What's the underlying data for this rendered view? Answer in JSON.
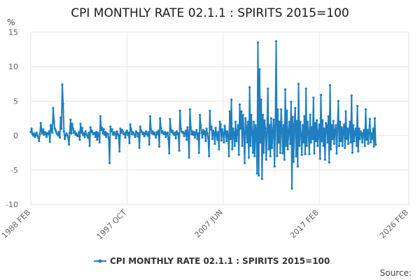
{
  "chart_data": {
    "type": "line",
    "title": "CPI MONTHLY RATE 02.1.1 : SPIRITS 2015=100",
    "ylabel": "%",
    "xlabel": "",
    "ylim": [
      -10,
      15
    ],
    "yticks": [
      -10,
      -5,
      0,
      5,
      10,
      15
    ],
    "xlim": [
      "1988 FEB",
      "2026 FEB"
    ],
    "xticks": [
      {
        "label": "1988 FEB",
        "month_index": 0
      },
      {
        "label": "1997 OCT",
        "month_index": 116
      },
      {
        "label": "2007 JUN",
        "month_index": 232
      },
      {
        "label": "2017 FEB",
        "month_index": 348
      },
      {
        "label": "2026 FEB",
        "month_index": 456
      }
    ],
    "series": [
      {
        "name": "CPI MONTHLY RATE 02.1.1 : SPIRITS 2015=100",
        "color": "#1f7fbf",
        "start": "1988 FEB",
        "frequency": "monthly",
        "values": [
          0.5,
          1.0,
          0.2,
          0.0,
          0.3,
          -0.2,
          0.1,
          0.4,
          0.0,
          -0.3,
          -0.8,
          0.2,
          1.8,
          0.6,
          0.3,
          0.9,
          0.1,
          0.5,
          0.4,
          -0.2,
          0.3,
          0.2,
          0.6,
          -0.9,
          1.5,
          0.9,
          0.4,
          4.0,
          2.1,
          1.0,
          0.7,
          0.4,
          0.2,
          0.0,
          0.5,
          -0.3,
          2.6,
          1.0,
          7.4,
          4.6,
          0.6,
          -0.5,
          0.0,
          0.3,
          0.1,
          -0.2,
          -1.3,
          0.4,
          2.3,
          0.3,
          1.7,
          1.0,
          0.4,
          0.6,
          0.1,
          0.3,
          0.0,
          -0.1,
          0.5,
          -0.6,
          1.7,
          0.4,
          1.1,
          0.1,
          0.3,
          -0.2,
          0.6,
          0.2,
          0.0,
          -0.3,
          0.4,
          -1.5,
          1.2,
          0.5,
          0.7,
          0.2,
          0.3,
          0.4,
          -0.2,
          0.5,
          -0.6,
          0.4,
          0.0,
          -1.0,
          2.8,
          0.8,
          1.1,
          0.3,
          0.9,
          0.1,
          0.5,
          -0.2,
          0.3,
          0.2,
          -0.4,
          -4.0,
          1.3,
          0.6,
          0.9,
          0.2,
          0.1,
          0.5,
          0.3,
          -0.4,
          0.6,
          0.2,
          0.0,
          -2.3,
          1.0,
          0.4,
          0.8,
          0.6,
          0.2,
          0.3,
          -0.3,
          0.5,
          0.7,
          0.1,
          0.4,
          -1.1,
          1.6,
          0.9,
          0.2,
          0.5,
          0.3,
          0.1,
          -0.2,
          0.6,
          0.4,
          -0.1,
          0.3,
          -1.8,
          1.3,
          0.7,
          0.5,
          0.2,
          0.4,
          -0.1,
          0.3,
          0.6,
          0.2,
          0.0,
          0.5,
          -1.3,
          2.8,
          0.9,
          0.3,
          0.6,
          0.2,
          0.4,
          0.1,
          -0.3,
          0.5,
          0.2,
          0.7,
          -1.6,
          2.5,
          1.1,
          0.4,
          0.6,
          0.3,
          0.2,
          0.5,
          -0.2,
          0.3,
          0.4,
          -0.5,
          -2.6,
          2.4,
          0.8,
          0.5,
          0.7,
          0.3,
          0.1,
          0.4,
          -0.4,
          0.6,
          0.2,
          0.3,
          -2.2,
          3.6,
          1.0,
          0.6,
          0.4,
          0.5,
          -0.1,
          0.3,
          0.7,
          -0.6,
          1.2,
          0.2,
          -3.2,
          3.8,
          1.2,
          0.2,
          0.6,
          0.1,
          0.5,
          -0.3,
          0.4,
          0.8,
          -0.5,
          0.3,
          -2.5,
          3.0,
          1.5,
          0.4,
          -0.3,
          0.8,
          0.2,
          0.6,
          -0.8,
          1.0,
          0.3,
          -0.4,
          -3.0,
          3.6,
          0.9,
          1.3,
          -0.5,
          0.7,
          0.4,
          -1.2,
          1.1,
          0.2,
          -0.6,
          0.5,
          -2.0,
          2.0,
          1.6,
          -0.7,
          0.9,
          0.3,
          -1.0,
          1.4,
          0.5,
          -0.8,
          0.6,
          0.2,
          -3.0,
          3.5,
          -0.5,
          5.2,
          -2.0,
          1.0,
          0.4,
          -1.5,
          2.0,
          -0.8,
          0.6,
          1.5,
          -2.8,
          4.5,
          1.0,
          3.5,
          -1.5,
          3.0,
          0.5,
          -4.0,
          2.5,
          1.2,
          -1.0,
          2.0,
          -3.2,
          7.0,
          -1.5,
          3.0,
          0.5,
          -2.5,
          2.0,
          -3.0,
          1.5,
          0.8,
          -5.5,
          13.5,
          -5.8,
          9.6,
          -1.0,
          5.2,
          -6.3,
          3.0,
          -2.5,
          2.2,
          1.0,
          -3.5,
          0.5,
          6.8,
          -2.0,
          1.5,
          -3.0,
          2.5,
          -1.8,
          0.6,
          2.3,
          -4.5,
          1.5,
          13.7,
          -3.0,
          3.8,
          -1.0,
          2.0,
          -2.5,
          3.8,
          1.0,
          -2.6,
          1.5,
          -3.5,
          6.7,
          -1.5,
          3.6,
          -2.0,
          0.5,
          2.0,
          -1.2,
          4.9,
          -7.7,
          2.7,
          -3.8,
          1.6,
          4.0,
          -3.0,
          2.1,
          -4.5,
          7.5,
          -1.5,
          2.0,
          0.2,
          -2.8,
          1.5,
          -1.0,
          2.8,
          -2.7,
          6.8,
          -1.5,
          2.0,
          0.5,
          -2.7,
          3.0,
          -1.0,
          1.2,
          -0.5,
          5.5,
          -2.6,
          1.8,
          -0.8,
          2.2,
          -1.5,
          0.6,
          1.6,
          -3.4,
          5.9,
          -0.8,
          2.2,
          -1.5,
          1.0,
          -3.5,
          1.8,
          1.5,
          -1.0,
          2.8,
          -3.9,
          7.3,
          -2.0,
          1.5,
          -0.5,
          2.1,
          -1.2,
          0.8,
          1.5,
          -2.6,
          1.0,
          5.0,
          -1.5,
          2.0,
          -0.8,
          1.2,
          -1.5,
          0.9,
          1.6,
          -1.8,
          3.5,
          -0.5,
          1.0,
          -1.2,
          0.8,
          2.0,
          -1.0,
          5.8,
          -2.5,
          1.5,
          -0.8,
          0.6,
          1.0,
          -1.5,
          4.3,
          -2.3,
          1.0,
          -0.5,
          0.6,
          0.2,
          -1.0,
          0.4,
          0.8,
          -1.5,
          3.8,
          -0.6,
          0.8,
          -1.2,
          0.5,
          2.4,
          -1.0,
          0.3,
          -0.5,
          1.0,
          -1.6,
          2.5,
          -1.3
        ]
      }
    ],
    "legend_position": "bottom",
    "grid": true
  },
  "source_label": "Source:"
}
